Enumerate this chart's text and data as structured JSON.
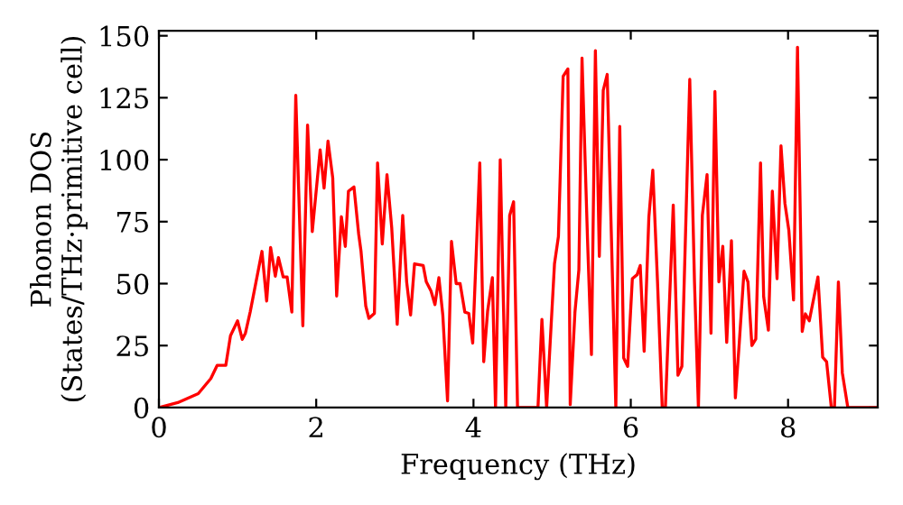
{
  "chart_data": {
    "type": "line",
    "xlabel": "Frequency (THz)",
    "ylabel": "Phonon DOS\n(States/THz·primitive cell)",
    "x": [
      0,
      0.24,
      0.5,
      0.66,
      0.74,
      0.85,
      0.91,
      1.0,
      1.06,
      1.1,
      1.16,
      1.31,
      1.37,
      1.42,
      1.48,
      1.52,
      1.58,
      1.63,
      1.69,
      1.74,
      1.83,
      1.89,
      1.95,
      2.05,
      2.1,
      2.15,
      2.21,
      2.26,
      2.32,
      2.37,
      2.41,
      2.48,
      2.54,
      2.57,
      2.63,
      2.67,
      2.74,
      2.78,
      2.84,
      2.9,
      2.96,
      3.03,
      3.1,
      3.15,
      3.2,
      3.25,
      3.36,
      3.4,
      3.46,
      3.51,
      3.56,
      3.61,
      3.67,
      3.72,
      3.78,
      3.83,
      3.89,
      3.94,
      3.99,
      4.08,
      4.13,
      4.18,
      4.24,
      4.28,
      4.34,
      4.41,
      4.46,
      4.51,
      4.56,
      4.82,
      4.87,
      4.93,
      5.03,
      5.08,
      5.14,
      5.2,
      5.23,
      5.29,
      5.34,
      5.38,
      5.45,
      5.5,
      5.55,
      5.6,
      5.65,
      5.7,
      5.81,
      5.86,
      5.91,
      5.96,
      6.02,
      6.08,
      6.12,
      6.17,
      6.23,
      6.28,
      6.34,
      6.4,
      6.44,
      6.54,
      6.6,
      6.65,
      6.75,
      6.81,
      6.86,
      6.91,
      6.97,
      7.02,
      7.07,
      7.12,
      7.17,
      7.22,
      7.28,
      7.33,
      7.38,
      7.44,
      7.49,
      7.54,
      7.59,
      7.65,
      7.69,
      7.75,
      7.8,
      7.86,
      7.91,
      7.96,
      8.01,
      8.07,
      8.12,
      8.18,
      8.22,
      8.27,
      8.38,
      8.44,
      8.49,
      8.55,
      8.59,
      8.64,
      8.69,
      8.76,
      9.13
    ],
    "series": [
      {
        "color": "#ff0000",
        "values": [
          0,
          2,
          5.6,
          11.7,
          17,
          17,
          29,
          35,
          27.5,
          30,
          38.5,
          63,
          43,
          64.6,
          53,
          60.5,
          52.7,
          52.7,
          38.5,
          126,
          33,
          114,
          71,
          104,
          88.5,
          107.5,
          92.7,
          45,
          77,
          65,
          87.3,
          89,
          70,
          63,
          41,
          36,
          38,
          98.7,
          66,
          94,
          72.6,
          33.6,
          77.5,
          50.7,
          37.3,
          58,
          57.3,
          50.7,
          47,
          41.5,
          52.4,
          37.3,
          2.7,
          67,
          50,
          50,
          38.5,
          38,
          26,
          98.7,
          18.5,
          39,
          52.4,
          0,
          100,
          0,
          77.5,
          83,
          0,
          0,
          35.6,
          0,
          58,
          69,
          133.6,
          136.6,
          1.2,
          38.5,
          55.6,
          141,
          67.8,
          21.4,
          144,
          61,
          128,
          134.4,
          0,
          113.4,
          20,
          16.6,
          52,
          53.6,
          57.3,
          22.7,
          76.8,
          95.8,
          50.7,
          0,
          0,
          81.7,
          13,
          16.6,
          132.4,
          50.7,
          0,
          77.5,
          94,
          30,
          127.5,
          50.7,
          65,
          26.3,
          67.3,
          3.9,
          26.3,
          55,
          50.7,
          25,
          27.7,
          98.7,
          44.6,
          31.2,
          87.3,
          52,
          105.6,
          82.4,
          71.5,
          43.4,
          145.4,
          30.7,
          37.8,
          35,
          52.7,
          20.3,
          18.5,
          0,
          0,
          50.7,
          14,
          0,
          0
        ]
      }
    ],
    "xlim": [
      0,
      9.14
    ],
    "ylim": [
      0,
      152
    ],
    "xticks": [
      0,
      2,
      4,
      6,
      8
    ],
    "yticks": [
      0,
      25,
      50,
      75,
      100,
      125,
      150
    ],
    "grid": false,
    "legend": false
  }
}
